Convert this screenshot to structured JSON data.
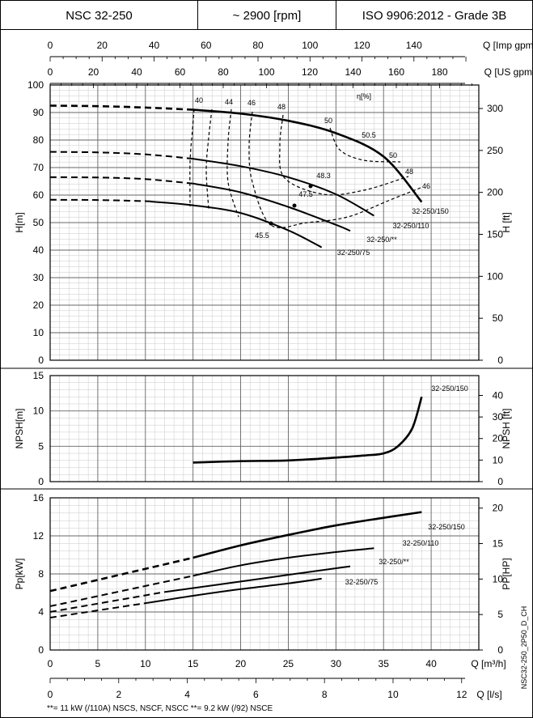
{
  "header": {
    "model": "NSC 32-250",
    "speed": "~ 2900 [rpm]",
    "standard": "ISO 9906:2012 - Grade 3B"
  },
  "footnote": "**= 11 kW (/110A) NSCS, NSCF, NSCC   **= 9.2 kW (/92) NSCE",
  "side_code": "NSC32-250_2P50_D_CH",
  "chart_data": [
    {
      "type": "line",
      "name": "head-curves",
      "xlabel": "Q [m³/h]",
      "ylabel": "H[m]",
      "ylabel_right": "H [ft]",
      "xlim": [
        0,
        45
      ],
      "ylim": [
        0,
        100
      ],
      "ylim_right": [
        0,
        328
      ],
      "x_ticks": [
        0,
        5,
        10,
        15,
        20,
        25,
        30,
        35,
        40
      ],
      "y_ticks": [
        0,
        10,
        20,
        30,
        40,
        50,
        60,
        70,
        80,
        90,
        100
      ],
      "y_ticks_right": [
        0,
        50,
        100,
        150,
        200,
        250,
        300
      ],
      "top_axes": [
        {
          "label": "Q [Imp gpm]",
          "factor": 3.666,
          "ticks": [
            0,
            20,
            40,
            60,
            80,
            100,
            120,
            140
          ]
        },
        {
          "label": "Q [US gpm]",
          "factor": 4.403,
          "ticks": [
            0,
            20,
            40,
            60,
            80,
            100,
            120,
            140,
            160,
            180
          ]
        }
      ],
      "efficiency_label": "η[%]",
      "series": [
        {
          "name": "32-250/150",
          "solid_from": 15,
          "x": [
            0,
            5,
            10,
            15,
            20,
            25,
            30,
            35,
            39
          ],
          "values": [
            92.5,
            92.3,
            91.8,
            91,
            89.6,
            87,
            82.5,
            74,
            57.5
          ]
        },
        {
          "name": "32-250/110",
          "solid_from": 15,
          "x": [
            0,
            5,
            10,
            15,
            20,
            25,
            30,
            34
          ],
          "values": [
            75.7,
            75.5,
            74.8,
            73.2,
            70.5,
            66.5,
            60.3,
            52.5
          ]
        },
        {
          "name": "32-250/**",
          "solid_from": 15,
          "x": [
            0,
            5,
            10,
            15,
            20,
            25,
            30,
            31.5
          ],
          "values": [
            66.5,
            66.4,
            65.8,
            64.2,
            61,
            55.7,
            49.2,
            47
          ]
        },
        {
          "name": "32-250/75",
          "solid_from": 10.5,
          "x": [
            0,
            5,
            10,
            15,
            20,
            25,
            28.5
          ],
          "values": [
            58.3,
            58.2,
            57.8,
            56.3,
            53.5,
            47.2,
            41
          ]
        }
      ],
      "efficiency_labels": [
        "40",
        "44",
        "46",
        "48",
        "50",
        "50.5",
        "50",
        "48",
        "46",
        "48.3",
        "47.5",
        "45.5"
      ]
    },
    {
      "type": "line",
      "name": "npsh-curve",
      "xlabel": "Q [m³/h]",
      "ylabel": "NPSH[m]",
      "ylabel_right": "NPSH [ft]",
      "xlim": [
        0,
        45
      ],
      "ylim": [
        0,
        15
      ],
      "y_ticks": [
        0,
        5,
        10,
        15
      ],
      "y_ticks_right": [
        0,
        10,
        20,
        30,
        40
      ],
      "series": [
        {
          "name": "32-250/150",
          "x": [
            15,
            20,
            25,
            30,
            33,
            35,
            36.5,
            38,
            39
          ],
          "values": [
            2.7,
            2.9,
            3.0,
            3.4,
            3.7,
            4.0,
            5.0,
            7.5,
            12
          ]
        }
      ]
    },
    {
      "type": "line",
      "name": "power-curves",
      "xlabel": "Q [m³/h]",
      "ylabel": "Pp[kW]",
      "ylabel_right": "PP[HP]",
      "xlim": [
        0,
        45
      ],
      "ylim": [
        0,
        16
      ],
      "y_ticks": [
        0,
        4,
        8,
        12,
        16
      ],
      "y_ticks_right": [
        0,
        5,
        10,
        15,
        20
      ],
      "bottom_axis": {
        "label": "Q [l/s]",
        "factor": 0.2778,
        "ticks": [
          0,
          2,
          4,
          6,
          8,
          10,
          12
        ]
      },
      "x_ticks": [
        0,
        5,
        10,
        15,
        20,
        25,
        30,
        35,
        40
      ],
      "series": [
        {
          "name": "32-250/150",
          "solid_from": 15,
          "x": [
            0,
            15,
            20,
            25,
            30,
            35,
            39
          ],
          "values": [
            6.2,
            9.7,
            11,
            12.1,
            13.1,
            13.9,
            14.5
          ]
        },
        {
          "name": "32-250/110",
          "solid_from": 15,
          "x": [
            0,
            15,
            20,
            25,
            30,
            34
          ],
          "values": [
            4.6,
            7.8,
            8.9,
            9.7,
            10.3,
            10.7
          ]
        },
        {
          "name": "32-250/**",
          "solid_from": 12,
          "x": [
            0,
            12,
            20,
            25,
            31.5
          ],
          "values": [
            4.0,
            6.1,
            7.2,
            7.9,
            8.8
          ]
        },
        {
          "name": "32-250/75",
          "solid_from": 10.5,
          "x": [
            0,
            10.5,
            15,
            20,
            25,
            28.5
          ],
          "values": [
            3.4,
            5.0,
            5.7,
            6.4,
            7.0,
            7.5
          ]
        }
      ]
    }
  ]
}
